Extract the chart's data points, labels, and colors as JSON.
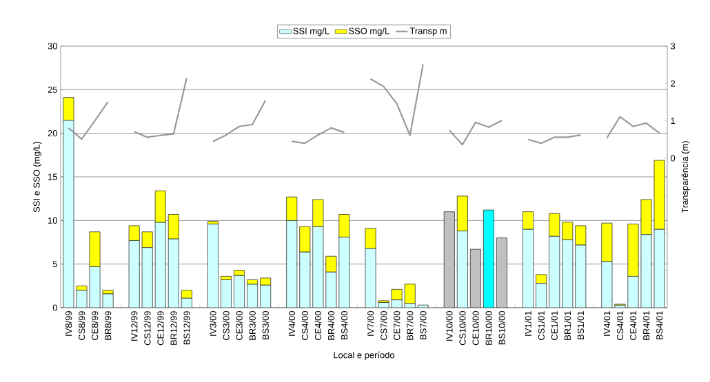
{
  "chart_data": {
    "type": "bar",
    "stacked": true,
    "xlabel": "Local e período",
    "ylabel": "SSI e SSO (mg/L)",
    "y2label": "Transparência (m)",
    "categories": [
      "IV8/99",
      "CS8/99",
      "CE8/99",
      "BR8/99",
      null,
      "IV12/99",
      "CS12/99",
      "CE12/99",
      "BR12/99",
      "BS12/99",
      null,
      "IV3/00",
      "CS3/00",
      "CE3/00",
      "BR3/00",
      "BS3/00",
      null,
      "IV4/00",
      "CS4/00",
      "CE4/00",
      "BR4/00",
      "BS4/00",
      null,
      "IV7/00",
      "CS7/00",
      "CE7/00",
      "BR7/00",
      "BS7/00",
      null,
      "IV10/00",
      "CS10/00",
      "CE10/00",
      "BR10/00",
      "BS10/00",
      null,
      "IV1/01",
      "CS1/01",
      "CE1/01",
      "BR1/01",
      "BS1/01",
      null,
      "IV4/01",
      "CS4/01",
      "CE4/01",
      "BR4/01",
      "BS4/01"
    ],
    "series": [
      {
        "name": "SSI mg/L",
        "color": "#ccffff",
        "values": [
          21.5,
          2.0,
          4.7,
          1.6,
          null,
          7.7,
          6.9,
          9.8,
          7.9,
          1.1,
          null,
          9.6,
          3.2,
          3.7,
          2.7,
          2.6,
          null,
          10.0,
          6.4,
          9.3,
          4.1,
          8.1,
          null,
          6.8,
          0.6,
          0.9,
          0.5,
          0.3,
          null,
          11.0,
          8.8,
          6.7,
          11.2,
          8.0,
          null,
          9.0,
          2.8,
          8.2,
          7.8,
          7.2,
          null,
          5.3,
          0.3,
          3.6,
          8.4,
          9.0
        ],
        "colors": [
          "#ccffff",
          "#ccffff",
          "#ccffff",
          "#ccffff",
          null,
          "#ccffff",
          "#ccffff",
          "#ccffff",
          "#ccffff",
          "#ccffff",
          null,
          "#ccffff",
          "#ccffff",
          "#ccffff",
          "#ccffff",
          "#ccffff",
          null,
          "#ccffff",
          "#ccffff",
          "#ccffff",
          "#ccffff",
          "#ccffff",
          null,
          "#ccffff",
          "#ccffff",
          "#ccffff",
          "#ccffff",
          "#ccffff",
          null,
          "#c0c0c0",
          "#ccffff",
          "#c0c0c0",
          "#00ffff",
          "#c0c0c0",
          null,
          "#ccffff",
          "#ccffff",
          "#ccffff",
          "#ccffff",
          "#ccffff",
          null,
          "#ccffff",
          "#ccffff",
          "#ccffff",
          "#ccffff",
          "#ccffff"
        ]
      },
      {
        "name": "SSO mg/L",
        "color": "#ffff00",
        "values": [
          2.6,
          0.5,
          4.0,
          0.4,
          null,
          1.7,
          1.8,
          3.6,
          2.8,
          0.9,
          null,
          0.3,
          0.4,
          0.6,
          0.5,
          0.8,
          null,
          2.7,
          2.9,
          3.1,
          1.8,
          2.6,
          null,
          2.3,
          0.2,
          1.2,
          2.2,
          null,
          null,
          null,
          4.0,
          null,
          null,
          null,
          null,
          2.0,
          1.0,
          2.6,
          2.0,
          2.2,
          null,
          4.4,
          0.1,
          6.0,
          4.0,
          7.9
        ]
      },
      {
        "name": "Transp m",
        "type": "line",
        "axis": "y2",
        "color": "#999999",
        "values": [
          0.81,
          0.51,
          1.0,
          1.51,
          null,
          0.71,
          0.56,
          0.61,
          0.65,
          2.15,
          null,
          0.45,
          0.62,
          0.85,
          0.9,
          1.55,
          null,
          0.45,
          0.4,
          0.62,
          0.81,
          0.69,
          null,
          2.12,
          1.92,
          1.46,
          0.61,
          2.51,
          null,
          0.75,
          0.36,
          0.96,
          0.83,
          1.01,
          null,
          0.5,
          0.4,
          0.56,
          0.56,
          0.62,
          null,
          0.54,
          1.11,
          0.85,
          0.94,
          0.67
        ]
      }
    ],
    "ylim": [
      0,
      30
    ],
    "yticks": [
      0,
      5,
      10,
      15,
      20,
      25,
      30
    ],
    "y2lim": [
      -4,
      3
    ],
    "y2ticks": [
      {
        "value": -4,
        "label": null
      },
      {
        "value": -3,
        "label": null
      },
      {
        "value": -2,
        "label": null
      },
      {
        "value": -1,
        "label": null
      },
      0,
      1,
      2,
      3
    ],
    "grid": "y",
    "legend": "top",
    "marker": "none",
    "line_style": "solid"
  }
}
